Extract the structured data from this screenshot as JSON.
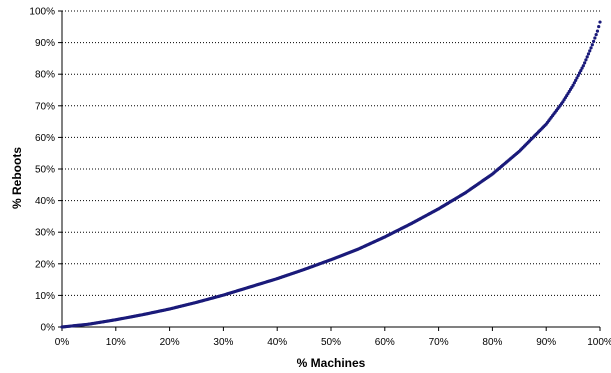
{
  "chart_data": {
    "type": "scatter",
    "title": "",
    "xlabel": "% Machines",
    "ylabel": "% Reboots",
    "xlim": [
      0,
      100
    ],
    "ylim": [
      0,
      100
    ],
    "x_ticks": [
      "0%",
      "10%",
      "20%",
      "30%",
      "40%",
      "50%",
      "60%",
      "70%",
      "80%",
      "90%",
      "100%"
    ],
    "y_ticks": [
      "0%",
      "10%",
      "20%",
      "30%",
      "40%",
      "50%",
      "60%",
      "70%",
      "80%",
      "90%",
      "100%"
    ],
    "grid": "horizontal dotted",
    "legend": "none",
    "colors": {
      "series": "#1a1a7a",
      "grid": "#000000",
      "axis": "#000000"
    },
    "series": [
      {
        "points": [
          [
            0,
            0
          ],
          [
            5,
            0.9
          ],
          [
            10,
            2.3
          ],
          [
            15,
            3.9
          ],
          [
            20,
            5.7
          ],
          [
            25,
            7.8
          ],
          [
            30,
            10.1
          ],
          [
            35,
            12.7
          ],
          [
            40,
            15.3
          ],
          [
            45,
            18.2
          ],
          [
            50,
            21.3
          ],
          [
            55,
            24.6
          ],
          [
            60,
            28.5
          ],
          [
            65,
            32.8
          ],
          [
            70,
            37.4
          ],
          [
            75,
            42.5
          ],
          [
            80,
            48.4
          ],
          [
            85,
            55.6
          ],
          [
            90,
            64.2
          ],
          [
            93,
            71.0
          ],
          [
            95,
            76.5
          ],
          [
            97,
            83.0
          ],
          [
            98.5,
            89.0
          ],
          [
            99.5,
            93.5
          ],
          [
            100,
            96.5
          ]
        ]
      }
    ]
  }
}
